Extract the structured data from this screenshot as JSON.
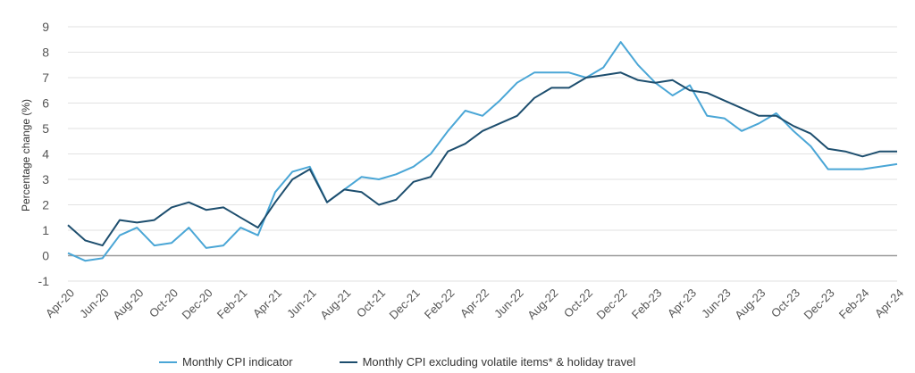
{
  "chart_data": {
    "type": "line",
    "ylabel": "Percentage change (%)",
    "ylim": [
      -1,
      9
    ],
    "yticks": [
      9,
      8,
      7,
      6,
      5,
      4,
      3,
      2,
      1,
      0,
      -1
    ],
    "xticks": [
      "Apr-20",
      "Jun-20",
      "Aug-20",
      "Oct-20",
      "Dec-20",
      "Feb-21",
      "Apr-21",
      "Jun-21",
      "Aug-21",
      "Oct-21",
      "Dec-21",
      "Feb-22",
      "Apr-22",
      "Jun-22",
      "Aug-22",
      "Oct-22",
      "Dec-22",
      "Feb-23",
      "Apr-23",
      "Jun-23",
      "Aug-23",
      "Oct-23",
      "Dec-23",
      "Feb-24",
      "Apr-24"
    ],
    "months": [
      "Apr-20",
      "May-20",
      "Jun-20",
      "Jul-20",
      "Aug-20",
      "Sep-20",
      "Oct-20",
      "Nov-20",
      "Dec-20",
      "Jan-21",
      "Feb-21",
      "Mar-21",
      "Apr-21",
      "May-21",
      "Jun-21",
      "Jul-21",
      "Aug-21",
      "Sep-21",
      "Oct-21",
      "Nov-21",
      "Dec-21",
      "Jan-22",
      "Feb-22",
      "Mar-22",
      "Apr-22",
      "May-22",
      "Jun-22",
      "Jul-22",
      "Aug-22",
      "Sep-22",
      "Oct-22",
      "Nov-22",
      "Dec-22",
      "Jan-23",
      "Feb-23",
      "Mar-23",
      "Apr-23",
      "May-23",
      "Jun-23",
      "Jul-23",
      "Aug-23",
      "Sep-23",
      "Oct-23",
      "Nov-23",
      "Dec-23",
      "Jan-24",
      "Feb-24",
      "Mar-24",
      "Apr-24"
    ],
    "grid": "horizontal",
    "legend_position": "bottom",
    "series": [
      {
        "name": "Monthly CPI indicator",
        "color": "#4aa6d6",
        "values": [
          0.1,
          -0.2,
          -0.1,
          0.8,
          1.1,
          0.4,
          0.5,
          1.1,
          0.3,
          0.4,
          1.1,
          0.8,
          2.5,
          3.3,
          3.5,
          2.1,
          2.6,
          3.1,
          3.0,
          3.2,
          3.5,
          4.0,
          4.9,
          5.7,
          5.5,
          6.1,
          6.8,
          7.2,
          7.2,
          7.2,
          7.0,
          7.4,
          8.4,
          7.5,
          6.8,
          6.3,
          6.7,
          5.5,
          5.4,
          4.9,
          5.2,
          5.6,
          4.9,
          4.3,
          3.4,
          3.4,
          3.4,
          3.5,
          3.6
        ]
      },
      {
        "name": "Monthly CPI excluding volatile items* & holiday travel",
        "color": "#1d4e6e",
        "values": [
          1.2,
          0.6,
          0.4,
          1.4,
          1.3,
          1.4,
          1.9,
          2.1,
          1.8,
          1.9,
          1.5,
          1.1,
          2.1,
          3.0,
          3.4,
          2.1,
          2.6,
          2.5,
          2.0,
          2.2,
          2.9,
          3.1,
          4.1,
          4.4,
          4.9,
          5.2,
          5.5,
          6.2,
          6.6,
          6.6,
          7.0,
          7.1,
          7.2,
          6.9,
          6.8,
          6.9,
          6.5,
          6.4,
          6.1,
          5.8,
          5.5,
          5.5,
          5.1,
          4.8,
          4.2,
          4.1,
          3.9,
          4.1,
          4.1
        ]
      }
    ]
  }
}
